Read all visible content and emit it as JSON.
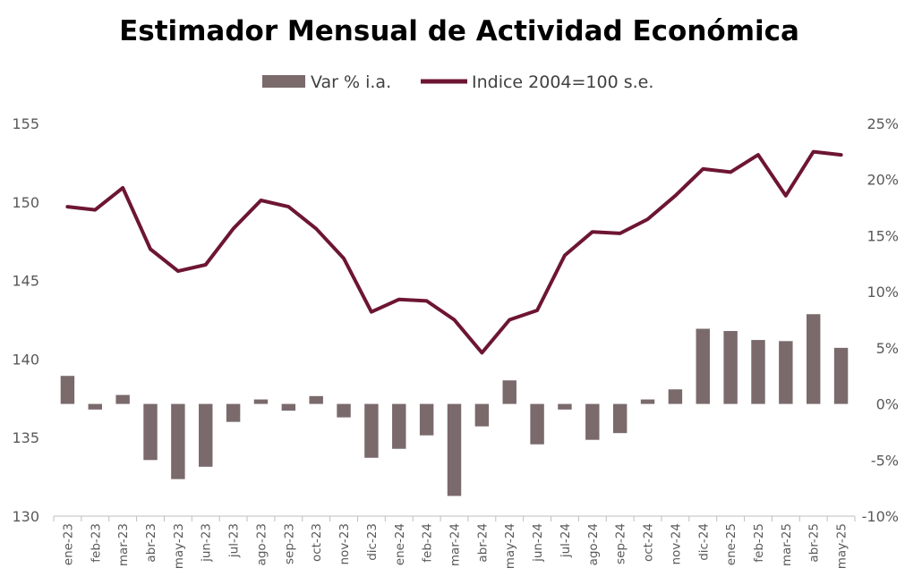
{
  "chart_data": {
    "type": "bar+line",
    "title": "Estimador Mensual de Actividad Económica",
    "legend_position": "top-center",
    "grid": false,
    "categories": [
      "ene-23",
      "feb-23",
      "mar-23",
      "abr-23",
      "may-23",
      "jun-23",
      "jul-23",
      "ago-23",
      "sep-23",
      "oct-23",
      "nov-23",
      "dic-23",
      "ene-24",
      "feb-24",
      "mar-24",
      "abr-24",
      "may-24",
      "jun-24",
      "jul-24",
      "ago-24",
      "sep-24",
      "oct-24",
      "nov-24",
      "dic-24",
      "ene-25",
      "feb-25",
      "mar-25",
      "abr-25",
      "may-25"
    ],
    "series": [
      {
        "name": "Var % i.a.",
        "kind": "bar",
        "axis": "right",
        "color": "#7a6a6c",
        "values": [
          2.5,
          -0.5,
          0.8,
          -5.0,
          -6.7,
          -5.6,
          -1.6,
          0.4,
          -0.6,
          0.7,
          -1.2,
          -4.8,
          -4.0,
          -2.8,
          -8.2,
          -2.0,
          2.1,
          -3.6,
          -0.5,
          -3.2,
          -2.6,
          0.4,
          1.3,
          6.7,
          6.5,
          5.7,
          5.6,
          8.0,
          5.0
        ]
      },
      {
        "name": "Indice 2004=100 s.e.",
        "kind": "line",
        "axis": "left",
        "color": "#6d1534",
        "values": [
          149.7,
          149.5,
          150.9,
          147.0,
          145.6,
          146.0,
          148.3,
          150.1,
          149.7,
          148.3,
          146.4,
          143.0,
          143.8,
          143.7,
          142.5,
          140.4,
          142.5,
          143.1,
          146.6,
          148.1,
          148.0,
          148.9,
          150.4,
          152.1,
          151.9,
          153.0,
          150.4,
          153.2,
          153.0
        ]
      }
    ],
    "y_left": {
      "min": 130,
      "max": 155,
      "ticks": [
        "130",
        "135",
        "140",
        "145",
        "150",
        "155"
      ],
      "tick_values": [
        130,
        135,
        140,
        145,
        150,
        155
      ]
    },
    "y_right": {
      "min": -10,
      "max": 25,
      "ticks": [
        "-10%",
        "-5%",
        "0%",
        "5%",
        "10%",
        "15%",
        "20%",
        "25%"
      ],
      "tick_values": [
        -10,
        -5,
        0,
        5,
        10,
        15,
        20,
        25
      ]
    }
  }
}
